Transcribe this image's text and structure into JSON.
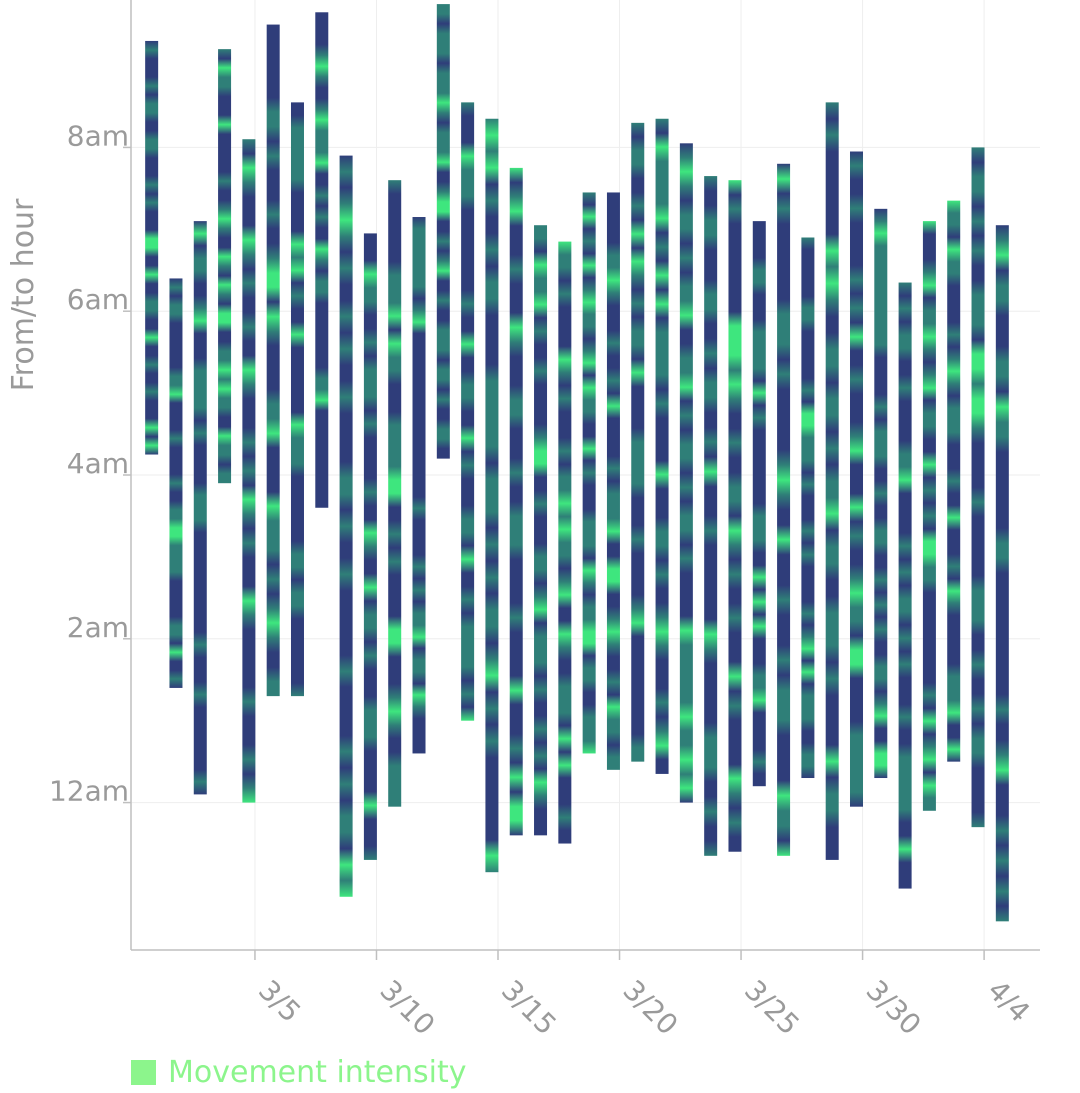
{
  "chart_data": {
    "type": "bar",
    "subtype": "floating-range",
    "ylabel": "From/to hour",
    "y_unit": "hour of day",
    "ylim": [
      -1.8,
      9.8
    ],
    "y_ticks": [
      {
        "value": 0,
        "label": "12am"
      },
      {
        "value": 2,
        "label": "2am"
      },
      {
        "value": 4,
        "label": "4am"
      },
      {
        "value": 6,
        "label": "6am"
      },
      {
        "value": 8,
        "label": "8am"
      }
    ],
    "x_ticks": [
      {
        "day": 5,
        "label": "3/5"
      },
      {
        "day": 10,
        "label": "3/10"
      },
      {
        "day": 15,
        "label": "3/15"
      },
      {
        "day": 20,
        "label": "3/20"
      },
      {
        "day": 25,
        "label": "3/25"
      },
      {
        "day": 30,
        "label": "3/30"
      },
      {
        "day": 35,
        "label": "4/4"
      }
    ],
    "xlim": [
      -0.1,
      37.3
    ],
    "grid": true,
    "legend": {
      "label": "Movement intensity",
      "position": "bottom-left"
    },
    "colors": {
      "low": "#2f3d7a",
      "mid": "#2f7f78",
      "high": "#3ee67e",
      "legend": "#8cf58c",
      "axis": "#bfbfbf",
      "grid": "#eeeeee",
      "text": "#9a9a9a"
    },
    "bars": [
      {
        "day": 0.75,
        "from": 4.25,
        "to": 9.3
      },
      {
        "day": 1.75,
        "from": 1.4,
        "to": 6.4
      },
      {
        "day": 2.75,
        "from": 0.1,
        "to": 7.1
      },
      {
        "day": 3.75,
        "from": 3.9,
        "to": 9.2
      },
      {
        "day": 4.75,
        "from": 0.0,
        "to": 8.1
      },
      {
        "day": 5.75,
        "from": 1.3,
        "to": 9.5
      },
      {
        "day": 6.75,
        "from": 1.3,
        "to": 8.55
      },
      {
        "day": 7.75,
        "from": 3.6,
        "to": 9.65
      },
      {
        "day": 8.75,
        "from": -1.15,
        "to": 7.9
      },
      {
        "day": 9.75,
        "from": -0.7,
        "to": 6.95
      },
      {
        "day": 10.75,
        "from": -0.05,
        "to": 7.6
      },
      {
        "day": 11.75,
        "from": 0.6,
        "to": 7.15
      },
      {
        "day": 12.75,
        "from": 4.2,
        "to": 9.75
      },
      {
        "day": 13.75,
        "from": 1.0,
        "to": 8.55
      },
      {
        "day": 14.75,
        "from": -0.85,
        "to": 8.35
      },
      {
        "day": 15.75,
        "from": -0.4,
        "to": 7.75
      },
      {
        "day": 16.75,
        "from": -0.4,
        "to": 7.05
      },
      {
        "day": 17.75,
        "from": -0.5,
        "to": 6.85
      },
      {
        "day": 18.75,
        "from": 0.6,
        "to": 7.45
      },
      {
        "day": 19.75,
        "from": 0.4,
        "to": 7.45
      },
      {
        "day": 20.75,
        "from": 0.5,
        "to": 8.3
      },
      {
        "day": 21.75,
        "from": 0.35,
        "to": 8.35
      },
      {
        "day": 22.75,
        "from": 0.0,
        "to": 8.05
      },
      {
        "day": 23.75,
        "from": -0.65,
        "to": 7.65
      },
      {
        "day": 24.75,
        "from": -0.6,
        "to": 7.6
      },
      {
        "day": 25.75,
        "from": 0.2,
        "to": 7.1
      },
      {
        "day": 26.75,
        "from": -0.65,
        "to": 7.8
      },
      {
        "day": 27.75,
        "from": 0.3,
        "to": 6.9
      },
      {
        "day": 28.75,
        "from": -0.7,
        "to": 8.55
      },
      {
        "day": 29.75,
        "from": -0.05,
        "to": 7.95
      },
      {
        "day": 30.75,
        "from": 0.3,
        "to": 7.25
      },
      {
        "day": 31.75,
        "from": -1.05,
        "to": 6.35
      },
      {
        "day": 32.75,
        "from": -0.1,
        "to": 7.1
      },
      {
        "day": 33.75,
        "from": 0.5,
        "to": 7.35
      },
      {
        "day": 34.75,
        "from": -0.3,
        "to": 8.0
      },
      {
        "day": 35.75,
        "from": -1.45,
        "to": 7.05
      }
    ]
  }
}
